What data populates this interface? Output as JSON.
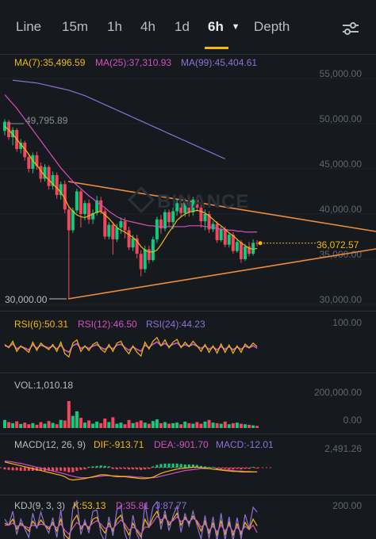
{
  "tabs": [
    {
      "label": "Line",
      "active": false
    },
    {
      "label": "15m",
      "active": false
    },
    {
      "label": "1h",
      "active": false
    },
    {
      "label": "4h",
      "active": false
    },
    {
      "label": "1d",
      "active": false
    },
    {
      "label": "6h",
      "active": true
    },
    {
      "label": "Depth",
      "active": false
    }
  ],
  "tab_dropdown_icon": "caret-down-icon",
  "settings_icon": "sliders-icon",
  "ma": {
    "ma7": "MA(7):35,496.59",
    "ma25": "MA(25):37,310.93",
    "ma99": "MA(99):45,404.61"
  },
  "price_axis": [
    "55,000.00",
    "50,000.00",
    "45,000.00",
    "40,000.00",
    "35,000.00",
    "30,000.00"
  ],
  "high_marker": "49,795.89",
  "low_marker": "30,000.00",
  "last_price": "36,072.57",
  "watermark": "BINANCE",
  "rsi": {
    "rsi6": "RSI(6):50.31",
    "rsi12": "RSI(12):46.50",
    "rsi24": "RSI(24):44.23",
    "axis": "100.00"
  },
  "vol": {
    "label": "VOL:1,010.18",
    "axis_top": "200,000.00",
    "axis_bottom": "0.00"
  },
  "macd": {
    "label": "MACD(12, 26, 9)",
    "dif": "DIF:-913.71",
    "dea": "DEA:-901.70",
    "macd": "MACD:-12.01",
    "axis": "2,491.26"
  },
  "kdj": {
    "label": "KDJ(9, 3, 3)",
    "k": "K:53.13",
    "d": "D:35.81",
    "j": "J:87.77",
    "axis": "200.00"
  },
  "colors": {
    "up": "#0ecb81",
    "down": "#f6465d",
    "ma7": "#f0b90b",
    "ma25": "#d64fc1",
    "ma99": "#8f6fd8",
    "trend": "#f08a3c",
    "accent": "#f0b90b"
  },
  "chart_data": {
    "type": "candlestick",
    "y_axis": [
      30000,
      55000
    ],
    "candles": [
      [
        48500,
        49500,
        48000,
        49795.89
      ],
      [
        49500,
        47800,
        47500,
        49700
      ],
      [
        47800,
        48600,
        46900,
        48900
      ],
      [
        48600,
        46500,
        46200,
        48800
      ],
      [
        46500,
        47200,
        46000,
        47600
      ],
      [
        47200,
        45600,
        45200,
        47400
      ],
      [
        45600,
        44300,
        43900,
        46000
      ],
      [
        44300,
        45800,
        43800,
        46100
      ],
      [
        45800,
        44600,
        44200,
        46200
      ],
      [
        44600,
        43200,
        42800,
        45000
      ],
      [
        43200,
        44500,
        42900,
        44800
      ],
      [
        44500,
        42400,
        42000,
        44700
      ],
      [
        42400,
        43600,
        42000,
        44000
      ],
      [
        43600,
        41400,
        41000,
        43900
      ],
      [
        41400,
        42600,
        40900,
        42900
      ],
      [
        42600,
        39800,
        39400,
        43000
      ],
      [
        39800,
        37500,
        30000,
        40200
      ],
      [
        37500,
        39700,
        37200,
        40000
      ],
      [
        39700,
        41800,
        39400,
        42100
      ],
      [
        41800,
        39300,
        37800,
        42000
      ],
      [
        39300,
        40500,
        38600,
        40800
      ],
      [
        40500,
        38700,
        38200,
        40900
      ],
      [
        38700,
        39400,
        38200,
        39800
      ],
      [
        39400,
        40800,
        39100,
        41300
      ],
      [
        40800,
        39600,
        39300,
        41200
      ],
      [
        39600,
        36800,
        36500,
        39900
      ],
      [
        36800,
        38100,
        36500,
        38400
      ],
      [
        38100,
        36500,
        34800,
        38400
      ],
      [
        36500,
        37800,
        36200,
        38200
      ],
      [
        37800,
        38500,
        37100,
        38900
      ],
      [
        38500,
        37500,
        36600,
        38900
      ],
      [
        37500,
        35600,
        35300,
        37900
      ],
      [
        35600,
        36600,
        35200,
        37000
      ],
      [
        36600,
        34900,
        34400,
        37000
      ],
      [
        34900,
        33200,
        32400,
        35300
      ],
      [
        33200,
        35400,
        32800,
        35800
      ],
      [
        35400,
        34200,
        33800,
        35800
      ],
      [
        34200,
        36500,
        34000,
        36800
      ],
      [
        36500,
        38700,
        36100,
        39000
      ],
      [
        38700,
        37700,
        37100,
        39200
      ],
      [
        37700,
        39500,
        37400,
        39800
      ],
      [
        39500,
        38400,
        37900,
        39800
      ],
      [
        38400,
        39600,
        37600,
        40000
      ],
      [
        39600,
        40500,
        39100,
        40900
      ],
      [
        40500,
        39400,
        38900,
        40900
      ],
      [
        39400,
        40600,
        39000,
        41000
      ],
      [
        40600,
        39500,
        39000,
        41000
      ],
      [
        39500,
        40900,
        39100,
        41200
      ],
      [
        40900,
        40000,
        39600,
        41300
      ],
      [
        40000,
        38500,
        37800,
        40300
      ],
      [
        38500,
        39300,
        37500,
        39800
      ],
      [
        39300,
        37600,
        37200,
        39600
      ],
      [
        37600,
        38200,
        37300,
        38500
      ],
      [
        38200,
        36400,
        36100,
        38500
      ],
      [
        36400,
        37600,
        36200,
        38000
      ],
      [
        37600,
        35900,
        35600,
        37900
      ],
      [
        35900,
        37000,
        35600,
        37300
      ],
      [
        37000,
        35200,
        34900,
        37300
      ],
      [
        35200,
        36200,
        35000,
        36500
      ],
      [
        36200,
        34300,
        33900,
        36400
      ],
      [
        34300,
        35700,
        34100,
        36000
      ],
      [
        35700,
        34900,
        34600,
        36200
      ],
      [
        34900,
        36100,
        34700,
        36500
      ],
      [
        36100,
        36072.57,
        35700,
        36400
      ]
    ],
    "ma7": [
      49000,
      48600,
      48100,
      47600,
      47000,
      46500,
      45900,
      45200,
      44700,
      44100,
      43500,
      43100,
      42600,
      42200,
      41700,
      41000,
      40100,
      39600,
      39200,
      39000,
      38900,
      39100,
      39300,
      39500,
      39600,
      39200,
      38800,
      38300,
      37800,
      37500,
      37300,
      37000,
      36700,
      36300,
      35700,
      35300,
      35100,
      35100,
      35300,
      35900,
      36600,
      37300,
      37900,
      38600,
      39000,
      39300,
      39500,
      39600,
      39700,
      39600,
      39400,
      39100,
      38700,
      38300,
      38000,
      37600,
      37200,
      36900,
      36500,
      36100,
      35800,
      35500,
      35400,
      35496.59
    ],
    "ma25": [
      52500,
      52000,
      51500,
      51000,
      50400,
      49800,
      49200,
      48600,
      48000,
      47400,
      46800,
      46200,
      45600,
      45000,
      44400,
      43900,
      43400,
      42900,
      42500,
      42100,
      41700,
      41300,
      41000,
      40600,
      40300,
      40000,
      39600,
      39300,
      39000,
      38800,
      38600,
      38500,
      38400,
      38300,
      38200,
      38100,
      38000,
      38000,
      37900,
      37900,
      37900,
      37900,
      37900,
      37900,
      37900,
      37900,
      38000,
      38000,
      38000,
      38000,
      37900,
      37900,
      37800,
      37700,
      37600,
      37600,
      37500,
      37500,
      37400,
      37400,
      37300,
      37300,
      37300,
      37310.93
    ],
    "ma99": [
      54100,
      54050,
      54000,
      53950,
      53900,
      53850,
      53800,
      53700,
      53600,
      53500,
      53400,
      53300,
      53200,
      53100,
      53000,
      52850,
      52700,
      52550,
      52400,
      52200,
      52000,
      51800,
      51600,
      51400,
      51200,
      51000,
      50800,
      50600,
      50400,
      50200,
      50000,
      49800,
      49600,
      49400,
      49200,
      49000,
      48800,
      48600,
      48400,
      48200,
      48000,
      47800,
      47600,
      47400,
      47200,
      47000,
      46800,
      46600,
      46400,
      46200,
      46000,
      45800,
      45600,
      45404.61
    ],
    "volumes": [
      30,
      22,
      18,
      25,
      15,
      20,
      14,
      18,
      12,
      22,
      16,
      26,
      19,
      14,
      30,
      28,
      100,
      45,
      62,
      38,
      20,
      28,
      16,
      24,
      18,
      35,
      22,
      40,
      16,
      20,
      14,
      30,
      18,
      22,
      28,
      20,
      16,
      26,
      32,
      18,
      22,
      16,
      18,
      20,
      14,
      24,
      18,
      16,
      22,
      16,
      24,
      30,
      20,
      18,
      16,
      24,
      14,
      18,
      20,
      16,
      14,
      12,
      10,
      8
    ],
    "rsi6": [
      55,
      48,
      62,
      40,
      52,
      45,
      38,
      60,
      42,
      58,
      50,
      44,
      55,
      40,
      60,
      35,
      28,
      58,
      65,
      40,
      52,
      42,
      55,
      60,
      45,
      38,
      55,
      40,
      58,
      62,
      45,
      35,
      52,
      38,
      30,
      60,
      45,
      62,
      70,
      52,
      65,
      48,
      60,
      66,
      48,
      60,
      50,
      62,
      52,
      40,
      55,
      38,
      52,
      36,
      56,
      38,
      54,
      36,
      52,
      38,
      56,
      48,
      58,
      50.31
    ],
    "rsi12": [
      52,
      49,
      56,
      45,
      50,
      47,
      43,
      54,
      46,
      53,
      50,
      47,
      51,
      45,
      53,
      42,
      38,
      52,
      56,
      46,
      50,
      46,
      51,
      54,
      48,
      44,
      50,
      45,
      53,
      55,
      48,
      42,
      49,
      44,
      40,
      53,
      48,
      55,
      60,
      52,
      57,
      50,
      55,
      58,
      50,
      54,
      51,
      55,
      51,
      46,
      51,
      44,
      49,
      43,
      50,
      44,
      50,
      43,
      49,
      44,
      51,
      47,
      52,
      46.5
    ],
    "macd_dif": [
      1.2,
      1.0,
      0.8,
      0.6,
      0.4,
      0.2,
      0.0,
      -0.2,
      -0.4,
      -0.6,
      -0.8,
      -1.0,
      -1.2,
      -1.4,
      -1.6,
      -1.9,
      -2.4,
      -2.6,
      -2.5,
      -2.4,
      -2.3,
      -2.1,
      -1.9,
      -1.7,
      -1.5,
      -1.5,
      -1.6,
      -1.8,
      -1.9,
      -1.9,
      -1.9,
      -2.0,
      -2.1,
      -2.2,
      -2.3,
      -2.3,
      -2.2,
      -2.0,
      -1.6,
      -1.2,
      -0.9,
      -0.7,
      -0.5,
      -0.3,
      -0.2,
      -0.1,
      0.0,
      0.1,
      0.1,
      0.0,
      -0.1,
      -0.2,
      -0.3,
      -0.4,
      -0.5,
      -0.6,
      -0.7,
      -0.8,
      -0.8,
      -0.9,
      -0.9,
      -0.9,
      -0.9,
      -0.91
    ],
    "macd_dea": [
      1.4,
      1.3,
      1.2,
      1.0,
      0.9,
      0.7,
      0.5,
      0.3,
      0.1,
      -0.1,
      -0.3,
      -0.5,
      -0.7,
      -0.9,
      -1.1,
      -1.3,
      -1.6,
      -1.8,
      -2.0,
      -2.1,
      -2.1,
      -2.1,
      -2.0,
      -1.9,
      -1.8,
      -1.7,
      -1.7,
      -1.7,
      -1.7,
      -1.8,
      -1.8,
      -1.8,
      -1.9,
      -2.0,
      -2.0,
      -2.1,
      -2.1,
      -2.1,
      -2.0,
      -1.8,
      -1.6,
      -1.4,
      -1.2,
      -1.0,
      -0.8,
      -0.6,
      -0.5,
      -0.4,
      -0.3,
      -0.2,
      -0.2,
      -0.2,
      -0.3,
      -0.3,
      -0.4,
      -0.5,
      -0.5,
      -0.6,
      -0.7,
      -0.7,
      -0.8,
      -0.8,
      -0.9,
      -0.9
    ],
    "kdj_k": [
      60,
      55,
      70,
      45,
      60,
      50,
      40,
      65,
      50,
      68,
      55,
      45,
      62,
      40,
      70,
      30,
      20,
      65,
      80,
      45,
      60,
      45,
      70,
      75,
      50,
      35,
      60,
      40,
      70,
      80,
      50,
      30,
      60,
      40,
      25,
      70,
      50,
      75,
      90,
      60,
      80,
      55,
      70,
      85,
      55,
      75,
      60,
      78,
      62,
      40,
      65,
      35,
      60,
      30,
      65,
      32,
      62,
      30,
      58,
      32,
      62,
      45,
      70,
      53.13
    ],
    "kdj_d": [
      55,
      55,
      60,
      52,
      55,
      52,
      48,
      55,
      52,
      58,
      55,
      50,
      56,
      48,
      58,
      42,
      32,
      48,
      62,
      52,
      56,
      50,
      60,
      66,
      58,
      46,
      52,
      46,
      58,
      68,
      58,
      42,
      50,
      44,
      32,
      50,
      50,
      62,
      78,
      68,
      74,
      62,
      66,
      76,
      64,
      70,
      64,
      72,
      66,
      50,
      58,
      42,
      52,
      38,
      55,
      40,
      55,
      38,
      50,
      38,
      52,
      44,
      55,
      35.81
    ]
  }
}
